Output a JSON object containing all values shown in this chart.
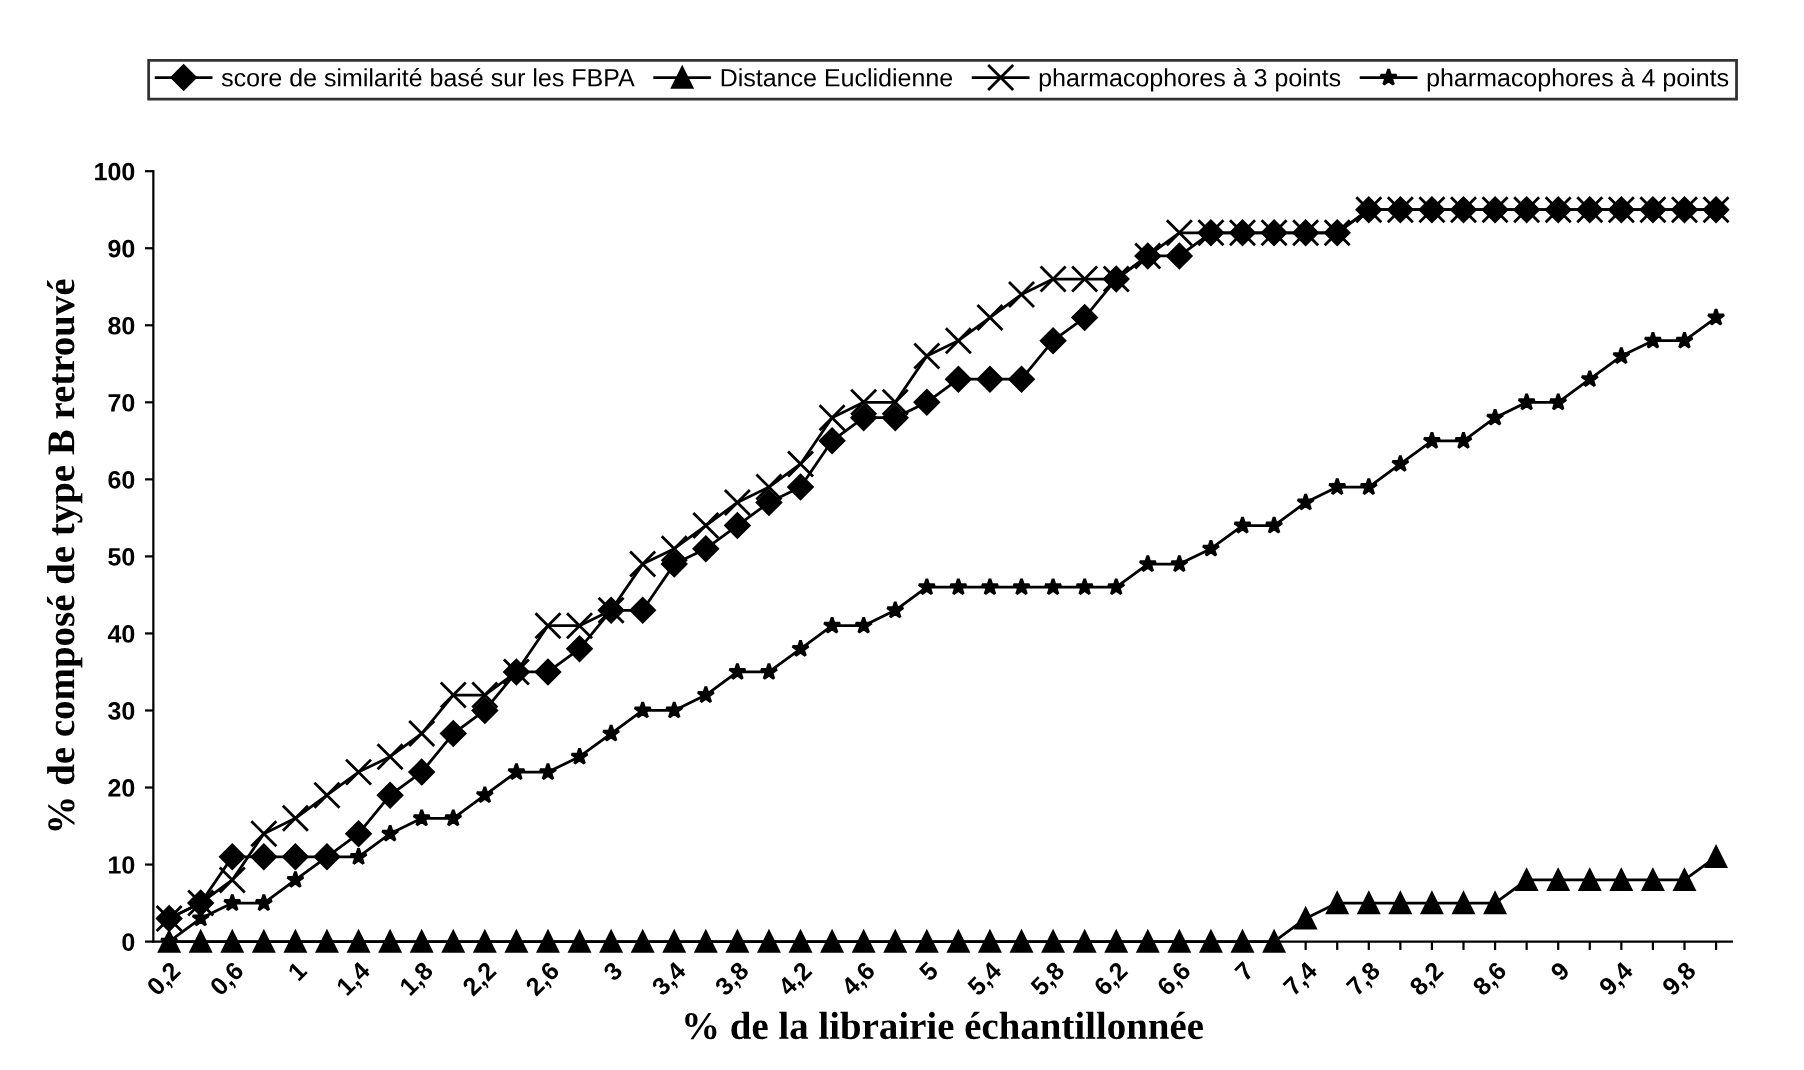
{
  "chart_data": {
    "type": "line",
    "xlabel": "% de la librairie échantillonnée",
    "ylabel": "% de composé de type B retrouvé",
    "categories": [
      "0,2",
      null,
      "0,6",
      null,
      "1",
      null,
      "1,4",
      null,
      "1,8",
      null,
      "2,2",
      null,
      "2,6",
      null,
      "3",
      null,
      "3,4",
      null,
      "3,8",
      null,
      "4,2",
      null,
      "4,6",
      null,
      "5",
      null,
      "5,4",
      null,
      "5,8",
      null,
      "6,2",
      null,
      "6,6",
      null,
      "7",
      null,
      "7,4",
      null,
      "7,8",
      null,
      "8,2",
      null,
      "8,6",
      null,
      "9",
      null,
      "9,4",
      null,
      "9,8",
      null
    ],
    "series": [
      {
        "name": "score de similarité basé sur les FBPA",
        "color": "#000000",
        "marker": "diamond",
        "values": [
          3,
          5,
          11,
          11,
          11,
          11,
          14,
          19,
          22,
          27,
          30,
          35,
          35,
          38,
          43,
          43,
          49,
          51,
          54,
          57,
          59,
          65,
          68,
          68,
          70,
          73,
          73,
          73,
          78,
          81,
          86,
          89,
          89,
          92,
          92,
          92,
          92,
          92,
          95,
          95,
          95,
          95,
          95,
          95,
          95,
          95,
          95,
          95,
          95,
          95
        ]
      },
      {
        "name": "Distance Euclidienne",
        "color": "#000000",
        "marker": "triangle",
        "values": [
          0,
          0,
          0,
          0,
          0,
          0,
          0,
          0,
          0,
          0,
          0,
          0,
          0,
          0,
          0,
          0,
          0,
          0,
          0,
          0,
          0,
          0,
          0,
          0,
          0,
          0,
          0,
          0,
          0,
          0,
          0,
          0,
          0,
          0,
          0,
          0,
          3,
          5,
          5,
          5,
          5,
          5,
          5,
          8,
          8,
          8,
          8,
          8,
          8,
          11
        ]
      },
      {
        "name": "pharmacophores à 3 points",
        "color": "#000000",
        "marker": "cross",
        "values": [
          3,
          5,
          8,
          14,
          16,
          19,
          22,
          24,
          27,
          32,
          32,
          35,
          41,
          41,
          43,
          49,
          51,
          54,
          57,
          59,
          62,
          68,
          70,
          70,
          76,
          78,
          81,
          84,
          86,
          86,
          86,
          89,
          92,
          92,
          92,
          92,
          92,
          92,
          95,
          95,
          95,
          95,
          95,
          95,
          95,
          95,
          95,
          95,
          95,
          95
        ]
      },
      {
        "name": "pharmacophores à 4 points",
        "color": "#000000",
        "marker": "star",
        "values": [
          0,
          3,
          5,
          5,
          8,
          11,
          11,
          14,
          16,
          16,
          19,
          22,
          22,
          24,
          27,
          30,
          30,
          32,
          35,
          35,
          38,
          41,
          41,
          43,
          46,
          46,
          46,
          46,
          46,
          46,
          46,
          49,
          49,
          51,
          54,
          54,
          57,
          59,
          59,
          62,
          65,
          65,
          68,
          70,
          70,
          73,
          76,
          78,
          78,
          81
        ]
      }
    ],
    "ylim": [
      0,
      100
    ],
    "yticks": [
      0,
      10,
      20,
      30,
      40,
      50,
      60,
      70,
      80,
      90,
      100
    ],
    "legend": "top",
    "grid": false,
    "line_style": "solid"
  }
}
